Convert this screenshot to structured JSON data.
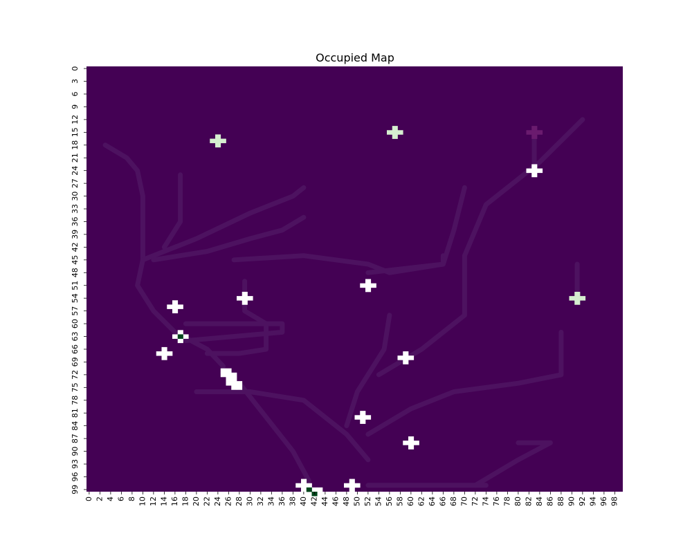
{
  "chart_data": {
    "type": "heatmap",
    "title": "Occupied Map",
    "xlabel": "",
    "ylabel": "",
    "rows": 100,
    "cols": 100,
    "x_tick_labels": [
      "0",
      "2",
      "4",
      "6",
      "8",
      "10",
      "12",
      "14",
      "16",
      "18",
      "20",
      "22",
      "24",
      "26",
      "28",
      "30",
      "32",
      "34",
      "36",
      "38",
      "40",
      "42",
      "44",
      "46",
      "48",
      "50",
      "52",
      "54",
      "56",
      "58",
      "60",
      "62",
      "64",
      "66",
      "68",
      "70",
      "72",
      "74",
      "76",
      "78",
      "80",
      "82",
      "84",
      "86",
      "88",
      "90",
      "92",
      "94",
      "96",
      "98"
    ],
    "y_tick_labels": [
      "0",
      "3",
      "6",
      "9",
      "12",
      "15",
      "18",
      "21",
      "24",
      "27",
      "30",
      "33",
      "36",
      "39",
      "42",
      "45",
      "48",
      "51",
      "54",
      "57",
      "60",
      "63",
      "66",
      "69",
      "72",
      "75",
      "78",
      "81",
      "84",
      "87",
      "90",
      "93",
      "96",
      "99"
    ],
    "colorbar": false,
    "background_color": "#440154",
    "faint_path_color": "#4d1260",
    "occupied_color": "#ffffff",
    "light_green_color": "#d6efd0",
    "dark_green_color": "#00441b",
    "purple_marker_color": "#6a1b6e",
    "plus_markers": [
      {
        "x": 24,
        "y": 17,
        "value": "light-green"
      },
      {
        "x": 57,
        "y": 15,
        "value": "light-green"
      },
      {
        "x": 83,
        "y": 15,
        "value": "purple"
      },
      {
        "x": 83,
        "y": 24,
        "value": "white"
      },
      {
        "x": 52,
        "y": 51,
        "value": "white"
      },
      {
        "x": 91,
        "y": 54,
        "value": "light-green"
      },
      {
        "x": 29,
        "y": 54,
        "value": "white"
      },
      {
        "x": 16,
        "y": 56,
        "value": "white"
      },
      {
        "x": 17,
        "y": 63,
        "value": "white-with-dark-center"
      },
      {
        "x": 14,
        "y": 67,
        "value": "white"
      },
      {
        "x": 59,
        "y": 68,
        "value": "white"
      },
      {
        "x": 51,
        "y": 82,
        "value": "white"
      },
      {
        "x": 60,
        "y": 88,
        "value": "white"
      },
      {
        "x": 40,
        "y": 98,
        "value": "white"
      },
      {
        "x": 49,
        "y": 98,
        "value": "white"
      }
    ],
    "blob_cells": [
      {
        "x": 25,
        "y": 71
      },
      {
        "x": 26,
        "y": 71
      },
      {
        "x": 25,
        "y": 72
      },
      {
        "x": 26,
        "y": 72
      },
      {
        "x": 27,
        "y": 72
      },
      {
        "x": 26,
        "y": 73
      },
      {
        "x": 27,
        "y": 73
      },
      {
        "x": 26,
        "y": 74
      },
      {
        "x": 27,
        "y": 74
      },
      {
        "x": 28,
        "y": 74
      },
      {
        "x": 27,
        "y": 75
      },
      {
        "x": 28,
        "y": 75
      },
      {
        "x": 41,
        "y": 99
      },
      {
        "x": 42,
        "y": 99
      },
      {
        "x": 43,
        "y": 99
      }
    ],
    "dark_cells": [
      {
        "x": 17,
        "y": 63
      },
      {
        "x": 41,
        "y": 99
      },
      {
        "x": 42,
        "y": 100
      }
    ],
    "faint_paths": [
      [
        [
          3,
          18
        ],
        [
          7,
          21
        ],
        [
          9,
          24
        ],
        [
          10,
          30
        ],
        [
          10,
          45
        ],
        [
          9,
          51
        ],
        [
          12,
          57
        ],
        [
          16,
          62
        ],
        [
          22,
          66
        ],
        [
          25,
          70
        ]
      ],
      [
        [
          10,
          45
        ],
        [
          20,
          40
        ],
        [
          30,
          34
        ],
        [
          38,
          30
        ],
        [
          40,
          28
        ]
      ],
      [
        [
          17,
          25
        ],
        [
          17,
          36
        ],
        [
          14,
          42
        ]
      ],
      [
        [
          12,
          45
        ],
        [
          22,
          43
        ],
        [
          30,
          40
        ],
        [
          36,
          38
        ],
        [
          40,
          35
        ]
      ],
      [
        [
          27,
          45
        ],
        [
          40,
          44
        ],
        [
          52,
          46
        ],
        [
          56,
          48
        ],
        [
          66,
          46
        ],
        [
          66,
          44
        ]
      ],
      [
        [
          29,
          50
        ],
        [
          29,
          57
        ],
        [
          33,
          60
        ],
        [
          33,
          66
        ],
        [
          28,
          67
        ],
        [
          22,
          67
        ]
      ],
      [
        [
          18,
          60
        ],
        [
          36,
          60
        ],
        [
          36,
          62
        ],
        [
          18,
          64
        ]
      ],
      [
        [
          28,
          74
        ],
        [
          33,
          82
        ],
        [
          38,
          90
        ],
        [
          41,
          97
        ]
      ],
      [
        [
          20,
          76
        ],
        [
          30,
          76
        ],
        [
          40,
          78
        ],
        [
          48,
          86
        ],
        [
          52,
          92
        ]
      ],
      [
        [
          52,
          86
        ],
        [
          60,
          80
        ],
        [
          68,
          76
        ],
        [
          80,
          74
        ],
        [
          88,
          72
        ],
        [
          88,
          62
        ]
      ],
      [
        [
          54,
          72
        ],
        [
          62,
          66
        ],
        [
          70,
          58
        ],
        [
          70,
          44
        ],
        [
          74,
          32
        ],
        [
          84,
          22
        ],
        [
          92,
          12
        ]
      ],
      [
        [
          52,
          48
        ],
        [
          66,
          46
        ],
        [
          68,
          38
        ],
        [
          70,
          28
        ]
      ],
      [
        [
          72,
          98
        ],
        [
          80,
          92
        ],
        [
          86,
          88
        ],
        [
          80,
          88
        ]
      ],
      [
        [
          52,
          98
        ],
        [
          74,
          98
        ]
      ],
      [
        [
          83,
          16
        ],
        [
          83,
          22
        ]
      ],
      [
        [
          91,
          46
        ],
        [
          91,
          52
        ]
      ],
      [
        [
          56,
          58
        ],
        [
          55,
          66
        ],
        [
          50,
          76
        ],
        [
          48,
          84
        ]
      ]
    ]
  }
}
